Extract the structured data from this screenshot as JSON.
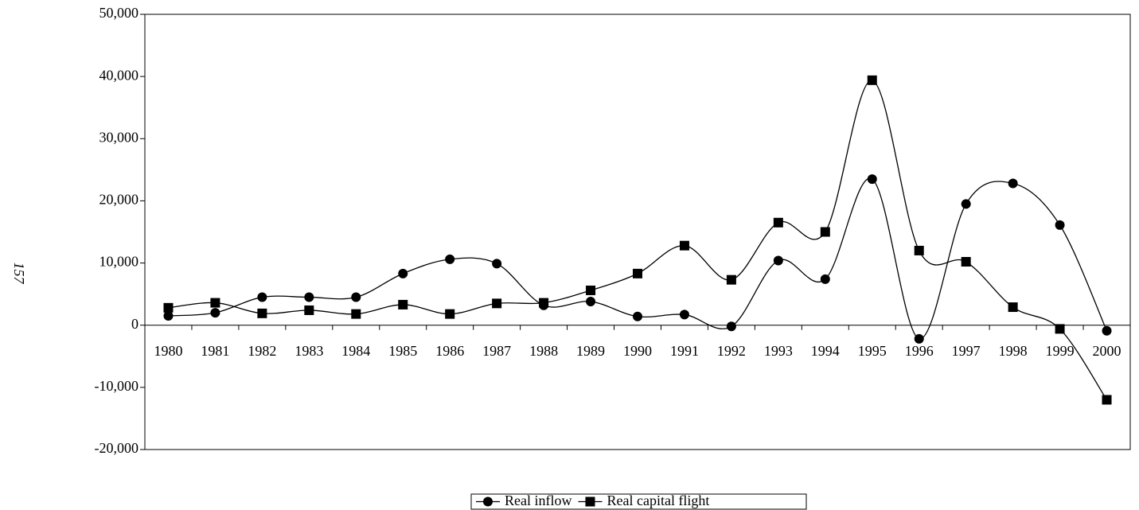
{
  "page_number": "157",
  "chart_data": {
    "type": "line",
    "categories": [
      "1980",
      "1981",
      "1982",
      "1983",
      "1984",
      "1985",
      "1986",
      "1987",
      "1988",
      "1989",
      "1990",
      "1991",
      "1992",
      "1993",
      "1994",
      "1995",
      "1996",
      "1997",
      "1998",
      "1999",
      "2000"
    ],
    "series": [
      {
        "name": "Real inflow",
        "color": "#000000",
        "marker": "circle",
        "values": [
          1500,
          2000,
          4500,
          4500,
          4500,
          8300,
          10600,
          9900,
          3200,
          3800,
          1400,
          1700,
          -200,
          10400,
          7400,
          23500,
          -2200,
          19500,
          22800,
          16100,
          -900
        ]
      },
      {
        "name": "Real capital flight",
        "color": "#000000",
        "marker": "square",
        "values": [
          2800,
          3600,
          1900,
          2400,
          1800,
          3300,
          1800,
          3500,
          3600,
          5600,
          8300,
          12800,
          7300,
          16500,
          15000,
          39400,
          12000,
          10200,
          2900,
          -600,
          -12000
        ]
      }
    ],
    "ylim": [
      -20000,
      50000
    ],
    "yticks": [
      {
        "value": -20000,
        "label": "-20,000"
      },
      {
        "value": -10000,
        "label": "-10,000"
      },
      0,
      {
        "value": 10000,
        "label": "10,000"
      },
      {
        "value": 20000,
        "label": "20,000"
      },
      {
        "value": 30000,
        "label": "30,000"
      },
      {
        "value": 40000,
        "label": "40,000"
      },
      {
        "value": 50000,
        "label": "50,000"
      }
    ],
    "smooth": true,
    "legend": "bottom"
  }
}
